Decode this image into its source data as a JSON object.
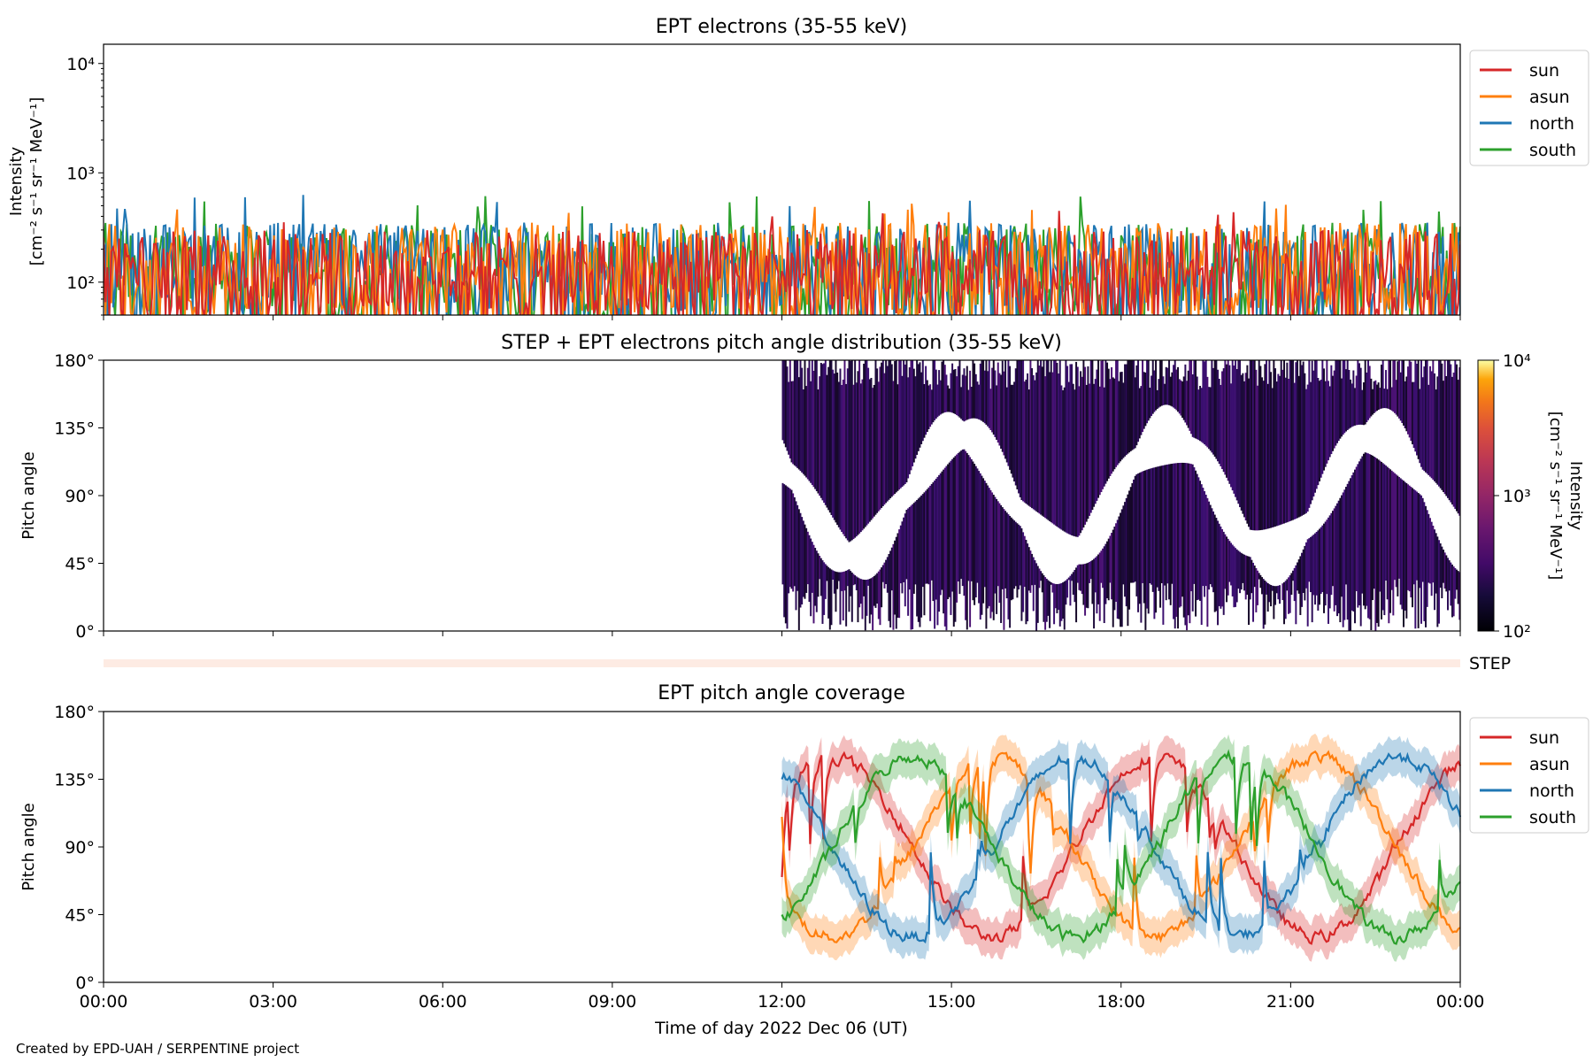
{
  "credit": "Created by EPD-UAH / SERPENTINE project",
  "colors": {
    "sun": "#d62728",
    "asun": "#ff7f0e",
    "north": "#1f77b4",
    "south": "#2ca02c"
  },
  "chart_data": [
    {
      "type": "line",
      "title": "EPT electrons (35-55 keV)",
      "ylabel_line1": "Intensity",
      "ylabel_line2": "[cm⁻² s⁻¹ sr⁻¹ MeV⁻¹]",
      "yscale": "log",
      "ylim": [
        50,
        15000
      ],
      "yticks": [
        "10²",
        "10³",
        "10⁴"
      ],
      "xlim_hours": [
        0,
        24
      ],
      "legend_position": "right",
      "series": [
        {
          "name": "sun",
          "color": "#d62728",
          "typical_range": [
            60,
            300
          ],
          "max": 450
        },
        {
          "name": "asun",
          "color": "#ff7f0e",
          "typical_range": [
            60,
            350
          ],
          "max": 550
        },
        {
          "name": "north",
          "color": "#1f77b4",
          "typical_range": [
            60,
            350
          ],
          "max": 650
        },
        {
          "name": "south",
          "color": "#2ca02c",
          "typical_range": [
            60,
            350
          ],
          "max": 620
        }
      ]
    },
    {
      "type": "heatmap",
      "title": "STEP + EPT electrons pitch angle distribution (35-55 keV)",
      "ylabel": "Pitch angle",
      "ylim": [
        0,
        180
      ],
      "yticks": [
        "0°",
        "45°",
        "90°",
        "135°",
        "180°"
      ],
      "data_start_hour": 12.0,
      "colorbar": {
        "label_line1": "Intensity",
        "label_line2": "[cm⁻² s⁻¹ sr⁻¹ MeV⁻¹]",
        "scale": "log",
        "range": [
          100,
          10000
        ],
        "ticks": [
          "10²",
          "10³",
          "10⁴"
        ],
        "colormap": "inferno"
      }
    },
    {
      "type": "bar",
      "label": "STEP",
      "note": "thin pale strip"
    },
    {
      "type": "line",
      "title": "EPT pitch angle coverage",
      "ylabel": "Pitch angle",
      "ylim": [
        0,
        180
      ],
      "yticks": [
        "0°",
        "45°",
        "90°",
        "135°",
        "180°"
      ],
      "xticks": [
        "00:00",
        "03:00",
        "06:00",
        "09:00",
        "12:00",
        "15:00",
        "18:00",
        "21:00",
        "00:00"
      ],
      "xlabel": "Time of day 2022 Dec 06 (UT)",
      "data_start_hour": 12.0,
      "legend_position": "right",
      "series": [
        {
          "name": "sun",
          "color": "#d62728",
          "start_value": 70
        },
        {
          "name": "asun",
          "color": "#ff7f0e",
          "start_value": 110
        },
        {
          "name": "north",
          "color": "#1f77b4",
          "start_value": 135
        },
        {
          "name": "south",
          "color": "#2ca02c",
          "start_value": 45
        }
      ]
    }
  ]
}
